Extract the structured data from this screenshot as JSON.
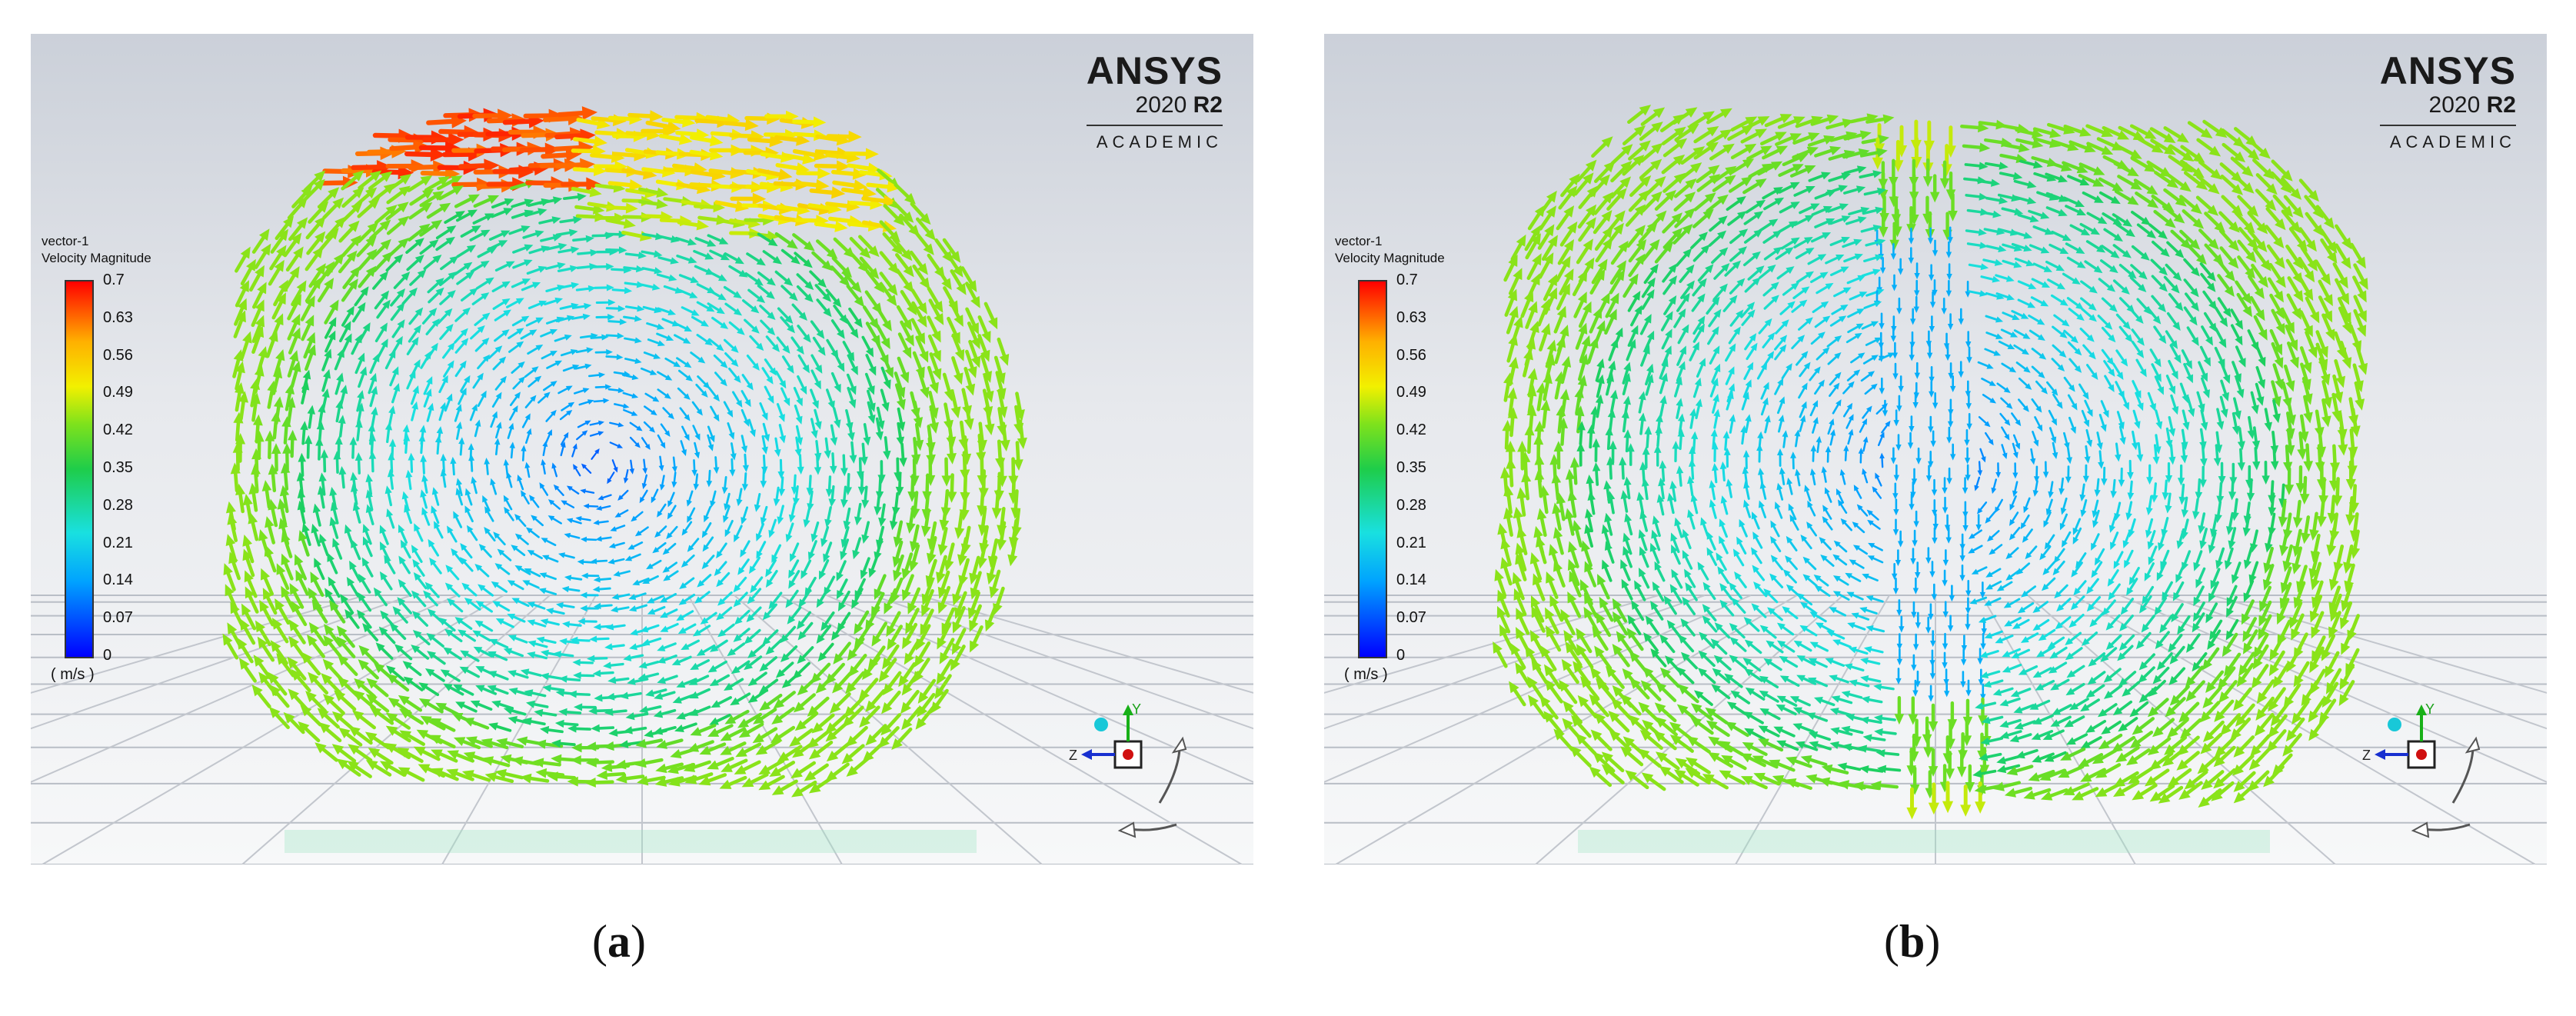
{
  "panels": [
    {
      "id": "a",
      "caption_open": "(",
      "caption_letter": "a",
      "caption_close": ")",
      "brand": {
        "name": "ANSYS",
        "version": "2020",
        "release": "R2",
        "edition": "ACADEMIC"
      },
      "legend": {
        "title": "vector-1",
        "variable": "Velocity Magnitude",
        "ticks": [
          "0.7",
          "0.63",
          "0.56",
          "0.49",
          "0.42",
          "0.35",
          "0.28",
          "0.21",
          "0.14",
          "0.07",
          "0"
        ],
        "unit": "( m/s )"
      },
      "axis_labels": {
        "y": "Y",
        "z": "Z"
      }
    },
    {
      "id": "b",
      "caption_open": "(",
      "caption_letter": "b",
      "caption_close": ")",
      "brand": {
        "name": "ANSYS",
        "version": "2020",
        "release": "R2",
        "edition": "ACADEMIC"
      },
      "legend": {
        "title": "vector-1",
        "variable": "Velocity Magnitude",
        "ticks": [
          "0.7",
          "0.63",
          "0.56",
          "0.49",
          "0.42",
          "0.35",
          "0.28",
          "0.21",
          "0.14",
          "0.07",
          "0"
        ],
        "unit": "( m/s )"
      },
      "axis_labels": {
        "y": "Y",
        "z": "Z"
      }
    }
  ],
  "colormap": [
    "#0000ff",
    "#00a2ff",
    "#19e0e0",
    "#1ecd4a",
    "#7ee21c",
    "#f2f000",
    "#ffb000",
    "#ff0000"
  ]
}
